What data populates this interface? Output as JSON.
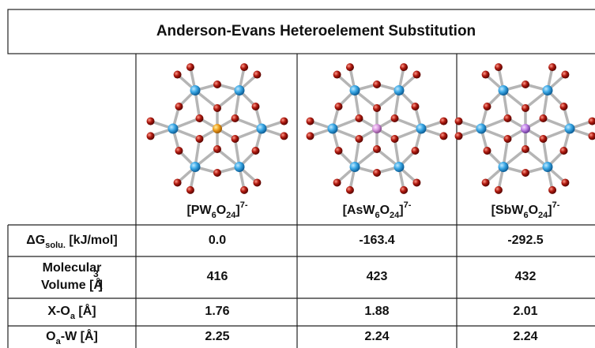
{
  "title": "Anderson-Evans Heteroelement Substitution",
  "table": {
    "columns": [
      {
        "formula": [
          "[PW",
          "6",
          "O",
          "24",
          "]",
          "7-"
        ]
      },
      {
        "formula": [
          "[AsW",
          "6",
          "O",
          "24",
          "]",
          "7-"
        ]
      },
      {
        "formula": [
          "[SbW",
          "6",
          "O",
          "24",
          "]",
          "7-"
        ]
      }
    ],
    "rows": [
      {
        "label": [
          "ΔG",
          "solu.",
          " [kJ/mol]"
        ],
        "cells": [
          "0.0",
          "-163.4",
          "-292.5"
        ]
      },
      {
        "label": [
          "Molecular",
          "Volume [Å",
          "3",
          "]"
        ],
        "cells": [
          "416",
          "423",
          "432"
        ]
      },
      {
        "label": [
          "X-O",
          "a",
          " [Å]"
        ],
        "cells": [
          "1.76",
          "1.88",
          "2.01"
        ]
      },
      {
        "label": [
          "O",
          "a",
          "-W [Å]"
        ],
        "cells": [
          "2.25",
          "2.24",
          "2.24"
        ]
      }
    ]
  }
}
